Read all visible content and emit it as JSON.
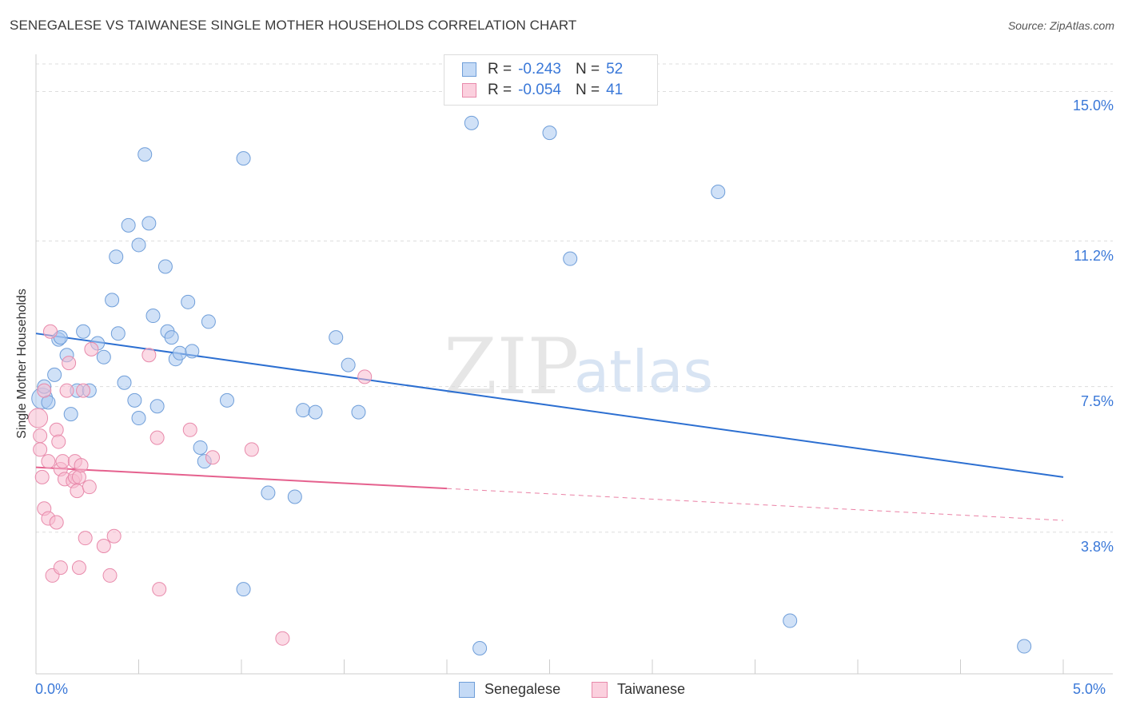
{
  "header": {
    "title": "SENEGALESE VS TAIWANESE SINGLE MOTHER HOUSEHOLDS CORRELATION CHART",
    "source": "Source: ZipAtlas.com"
  },
  "legend": {
    "rows": [
      {
        "r_label": "R =",
        "r_value": "-0.243",
        "n_label": "N =",
        "n_value": "52"
      },
      {
        "r_label": "R =",
        "r_value": "-0.054",
        "n_label": "N =",
        "n_value": "41"
      }
    ]
  },
  "watermark": {
    "zip": "ZIP",
    "atlas": "atlas"
  },
  "colors": {
    "senegalese_fill": "#aac8f0",
    "senegalese_stroke": "#6f9ed9",
    "senegalese_line": "#2c6fd1",
    "taiwanese_fill": "#f7bcd0",
    "taiwanese_stroke": "#e88aab",
    "taiwanese_line": "#e5618e",
    "axis_label": "#3a78d8",
    "grid": "#dddddd"
  },
  "chart_data": {
    "type": "scatter",
    "title": "SENEGALESE VS TAIWANESE SINGLE MOTHER HOUSEHOLDS CORRELATION CHART",
    "xlabel": "",
    "ylabel": "Single Mother Households",
    "xlim": [
      0,
      5
    ],
    "ylim": [
      0.2,
      15.7
    ],
    "x_tick_labels": [
      "0.0%",
      "5.0%"
    ],
    "y_ticks": [
      3.8,
      7.5,
      11.2,
      15.0
    ],
    "y_tick_labels": [
      "3.8%",
      "7.5%",
      "11.2%",
      "15.0%"
    ],
    "grid": true,
    "legend_position": "top-center",
    "series": [
      {
        "name": "Senegalese",
        "r": -0.243,
        "n": 52,
        "trend": {
          "x": [
            0.0,
            5.0
          ],
          "y": [
            8.85,
            5.2
          ],
          "dashed_from": null
        },
        "points": [
          [
            0.03,
            7.2
          ],
          [
            0.04,
            7.5
          ],
          [
            0.06,
            7.1
          ],
          [
            0.09,
            7.8
          ],
          [
            0.11,
            8.7
          ],
          [
            0.12,
            8.75
          ],
          [
            0.15,
            8.3
          ],
          [
            0.17,
            6.8
          ],
          [
            0.2,
            7.4
          ],
          [
            0.23,
            8.9
          ],
          [
            0.26,
            7.4
          ],
          [
            0.3,
            8.6
          ],
          [
            0.33,
            8.25
          ],
          [
            0.37,
            9.7
          ],
          [
            0.39,
            10.8
          ],
          [
            0.4,
            8.85
          ],
          [
            0.43,
            7.6
          ],
          [
            0.45,
            11.6
          ],
          [
            0.48,
            7.15
          ],
          [
            0.5,
            11.1
          ],
          [
            0.5,
            6.7
          ],
          [
            0.53,
            13.4
          ],
          [
            0.55,
            11.65
          ],
          [
            0.57,
            9.3
          ],
          [
            0.59,
            7.0
          ],
          [
            0.63,
            10.55
          ],
          [
            0.64,
            8.9
          ],
          [
            0.66,
            8.75
          ],
          [
            0.68,
            8.2
          ],
          [
            0.7,
            8.35
          ],
          [
            0.74,
            9.65
          ],
          [
            0.76,
            8.4
          ],
          [
            0.8,
            5.95
          ],
          [
            0.82,
            5.6
          ],
          [
            0.84,
            9.15
          ],
          [
            0.93,
            7.15
          ],
          [
            1.01,
            13.3
          ],
          [
            1.01,
            2.35
          ],
          [
            1.13,
            4.8
          ],
          [
            1.26,
            4.7
          ],
          [
            1.3,
            6.9
          ],
          [
            1.36,
            6.85
          ],
          [
            1.46,
            8.75
          ],
          [
            1.52,
            8.05
          ],
          [
            1.57,
            6.85
          ],
          [
            2.12,
            14.2
          ],
          [
            2.16,
            0.85
          ],
          [
            2.5,
            13.95
          ],
          [
            2.6,
            10.75
          ],
          [
            3.32,
            12.45
          ],
          [
            3.67,
            1.55
          ],
          [
            4.81,
            0.9
          ]
        ]
      },
      {
        "name": "Taiwanese",
        "r": -0.054,
        "n": 41,
        "trend": {
          "x": [
            0.0,
            5.0
          ],
          "y": [
            5.45,
            4.1
          ],
          "dashed_from": 2.0
        },
        "points": [
          [
            0.01,
            6.7
          ],
          [
            0.02,
            6.25
          ],
          [
            0.02,
            5.9
          ],
          [
            0.03,
            5.2
          ],
          [
            0.04,
            7.4
          ],
          [
            0.04,
            4.4
          ],
          [
            0.06,
            4.15
          ],
          [
            0.06,
            5.6
          ],
          [
            0.07,
            8.9
          ],
          [
            0.08,
            2.7
          ],
          [
            0.1,
            6.4
          ],
          [
            0.1,
            4.05
          ],
          [
            0.11,
            6.1
          ],
          [
            0.12,
            2.9
          ],
          [
            0.12,
            5.4
          ],
          [
            0.13,
            5.6
          ],
          [
            0.14,
            5.15
          ],
          [
            0.15,
            7.4
          ],
          [
            0.16,
            8.1
          ],
          [
            0.18,
            5.1
          ],
          [
            0.19,
            5.6
          ],
          [
            0.19,
            5.2
          ],
          [
            0.2,
            4.85
          ],
          [
            0.21,
            5.2
          ],
          [
            0.21,
            2.9
          ],
          [
            0.22,
            5.5
          ],
          [
            0.23,
            7.4
          ],
          [
            0.24,
            3.65
          ],
          [
            0.26,
            4.95
          ],
          [
            0.27,
            8.45
          ],
          [
            0.33,
            3.45
          ],
          [
            0.36,
            2.7
          ],
          [
            0.38,
            3.7
          ],
          [
            0.55,
            8.3
          ],
          [
            0.59,
            6.2
          ],
          [
            0.6,
            2.35
          ],
          [
            0.75,
            6.4
          ],
          [
            0.86,
            5.7
          ],
          [
            1.05,
            5.9
          ],
          [
            1.2,
            1.1
          ],
          [
            1.6,
            7.75
          ]
        ]
      }
    ]
  },
  "legend_bottom": {
    "items": [
      "Senegalese",
      "Taiwanese"
    ]
  }
}
